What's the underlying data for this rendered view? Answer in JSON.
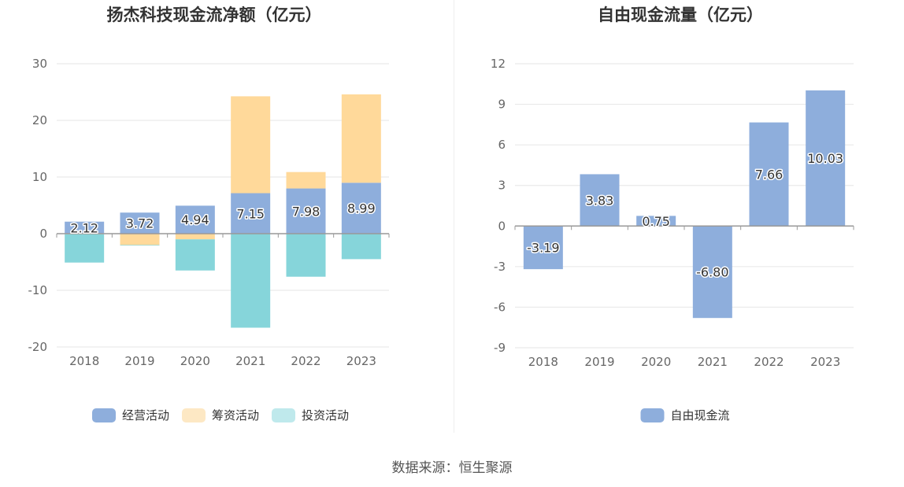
{
  "source_label": "数据来源：恒生聚源",
  "chart_data": [
    {
      "type": "bar",
      "stacked": true,
      "title": "扬杰科技现金流净额（亿元）",
      "categories": [
        "2018",
        "2019",
        "2020",
        "2021",
        "2022",
        "2023"
      ],
      "ylim": [
        -20,
        30
      ],
      "yticks": [
        -20,
        -10,
        0,
        10,
        20,
        30
      ],
      "grid": true,
      "legend_position": "bottom",
      "series": [
        {
          "name": "经营活动",
          "color": "#8eaedc",
          "values": [
            2.12,
            3.72,
            4.94,
            7.15,
            7.98,
            8.99
          ],
          "labels": [
            "2.12",
            "3.72",
            "4.94",
            "7.15",
            "7.98",
            "8.99"
          ]
        },
        {
          "name": "筹资活动",
          "color": "#ffd99a",
          "legend_color": "#fde8c4",
          "values": [
            -0.1,
            -2.0,
            -1.0,
            17.1,
            2.9,
            15.6
          ]
        },
        {
          "name": "投资活动",
          "color": "#86d5da",
          "legend_color": "#bfe9ec",
          "values": [
            -5.0,
            -0.1,
            -5.5,
            -16.6,
            -7.6,
            -4.5
          ]
        }
      ]
    },
    {
      "type": "bar",
      "title": "自由现金流量（亿元）",
      "categories": [
        "2018",
        "2019",
        "2020",
        "2021",
        "2022",
        "2023"
      ],
      "ylim": [
        -9,
        12
      ],
      "yticks": [
        -9,
        -6,
        -3,
        0,
        3,
        6,
        9,
        12
      ],
      "grid": true,
      "legend_position": "bottom",
      "series": [
        {
          "name": "自由现金流",
          "color": "#8eaedc",
          "values": [
            -3.19,
            3.83,
            0.75,
            -6.8,
            7.66,
            10.03
          ],
          "labels": [
            "-3.19",
            "3.83",
            "0.75",
            "-6.80",
            "7.66",
            "10.03"
          ]
        }
      ]
    }
  ]
}
